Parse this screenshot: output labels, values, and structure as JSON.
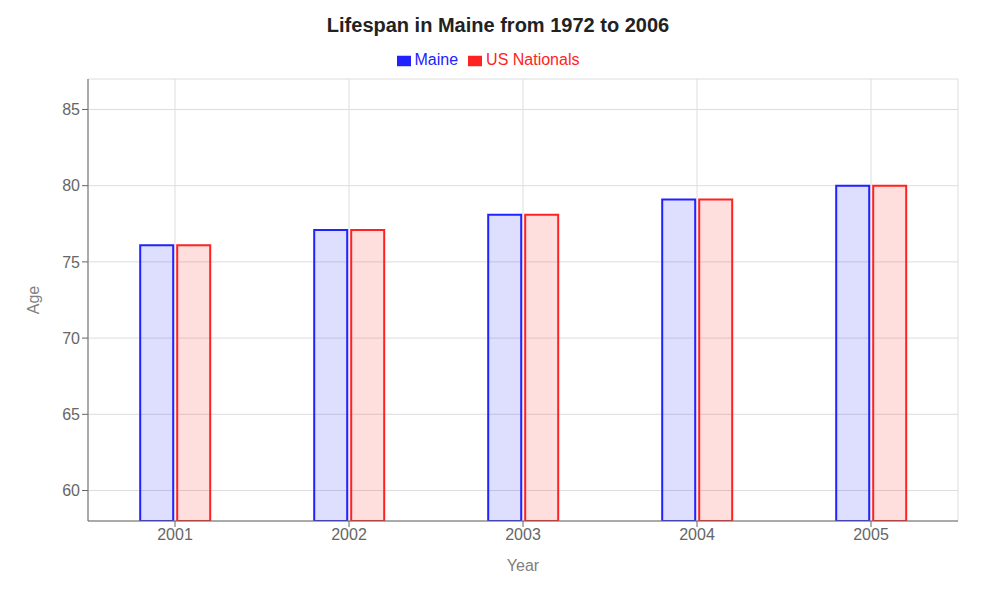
{
  "chart_data": {
    "type": "bar",
    "title": "Lifespan in Maine from 1972 to 2006",
    "xlabel": "Year",
    "ylabel": "Age",
    "categories": [
      "2001",
      "2002",
      "2003",
      "2004",
      "2005"
    ],
    "series": [
      {
        "name": "Maine",
        "color": "#2222ff",
        "values": [
          76.1,
          77.1,
          78.1,
          79.1,
          80.0
        ]
      },
      {
        "name": "US Nationals",
        "color": "#ff2222",
        "values": [
          76.1,
          77.1,
          78.1,
          79.1,
          80.0
        ]
      }
    ],
    "ylim": [
      58,
      87
    ],
    "yticks": [
      60,
      65,
      70,
      75,
      80,
      85
    ],
    "grid": true,
    "legend": "top"
  }
}
